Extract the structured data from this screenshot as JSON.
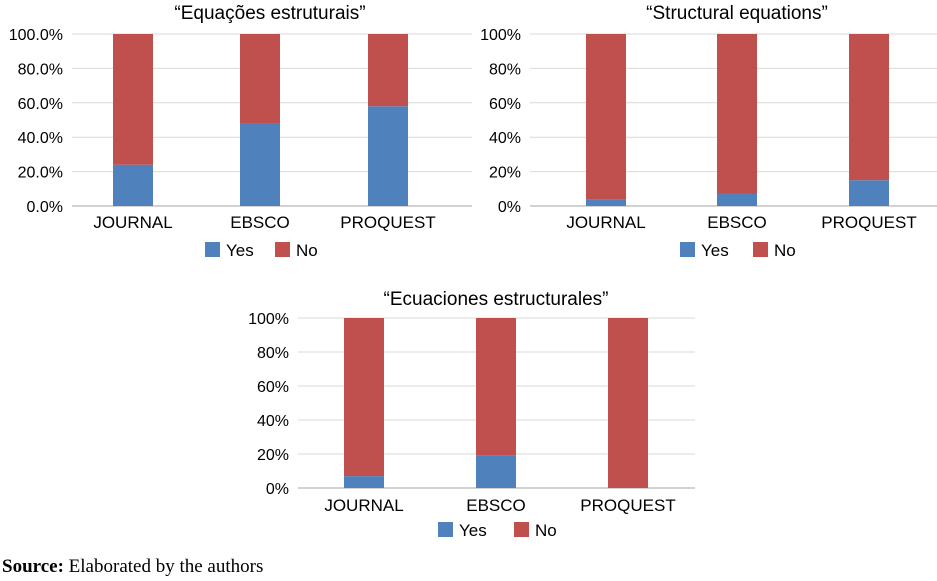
{
  "chart_data": [
    {
      "type": "bar",
      "stacked": true,
      "title": "“Equações estruturais”",
      "categories": [
        "JOURNAL",
        "EBSCO",
        "PROQUEST"
      ],
      "ylim": [
        0,
        1
      ],
      "yticks": [
        "0.0%",
        "20.0%",
        "40.0%",
        "60.0%",
        "80.0%",
        "100.0%"
      ],
      "grid": true,
      "legend_position": "bottom",
      "series": [
        {
          "name": "Yes",
          "color": "#4f81bd",
          "values": [
            0.24,
            0.48,
            0.58
          ]
        },
        {
          "name": "No",
          "color": "#c0504d",
          "values": [
            0.76,
            0.52,
            0.42
          ]
        }
      ]
    },
    {
      "type": "bar",
      "stacked": true,
      "title": "“Structural equations”",
      "categories": [
        "JOURNAL",
        "EBSCO",
        "PROQUEST"
      ],
      "ylim": [
        0,
        1
      ],
      "yticks": [
        "0%",
        "20%",
        "40%",
        "60%",
        "80%",
        "100%"
      ],
      "grid": true,
      "legend_position": "bottom",
      "series": [
        {
          "name": "Yes",
          "color": "#4f81bd",
          "values": [
            0.04,
            0.07,
            0.15
          ]
        },
        {
          "name": "No",
          "color": "#c0504d",
          "values": [
            0.96,
            0.93,
            0.85
          ]
        }
      ]
    },
    {
      "type": "bar",
      "stacked": true,
      "title": "“Ecuaciones estructurales”",
      "categories": [
        "JOURNAL",
        "EBSCO",
        "PROQUEST"
      ],
      "ylim": [
        0,
        1
      ],
      "yticks": [
        "0%",
        "20%",
        "40%",
        "60%",
        "80%",
        "100%"
      ],
      "grid": true,
      "legend_position": "bottom",
      "series": [
        {
          "name": "Yes",
          "color": "#4f81bd",
          "values": [
            0.07,
            0.19,
            0.0
          ]
        },
        {
          "name": "No",
          "color": "#c0504d",
          "values": [
            0.93,
            0.81,
            1.0
          ]
        }
      ]
    }
  ],
  "source": {
    "label": "Source:",
    "text": " Elaborated by the authors"
  }
}
